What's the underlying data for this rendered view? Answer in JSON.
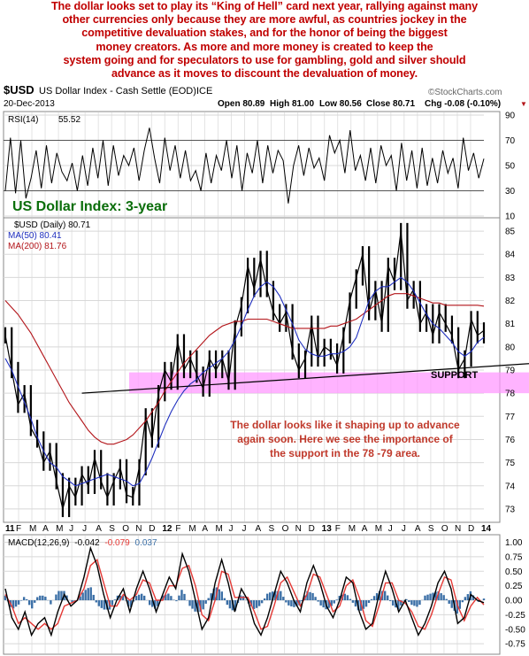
{
  "headline": [
    "The dollar looks set to play its “King of Hell” card next year, rallying against many",
    "other currencies only because they are more awful, as countries jockey in the",
    "competitive devaluation stakes, and for the honor of being the biggest",
    "money creators. As more and more money is created to keep the",
    "system going and for speculators to use for gambling, gold and silver should",
    "advance as it moves to discount the devaluation of money."
  ],
  "chart_header": {
    "symbol": "$USD",
    "name": "US Dollar Index - Cash Settle (EOD)",
    "exchange": "ICE",
    "date": "20-Dec-2013",
    "source": "©StockCharts.com",
    "open": "Open 80.89",
    "high": "High 81.00",
    "low": "Low 80.56",
    "close": "Close 80.71",
    "chg": "Chg -0.08 (-0.10%)",
    "chg_marker": "▼"
  },
  "colors": {
    "headline": "#c00000",
    "price": "#000000",
    "ma50": "#1f2fbf",
    "ma200": "#b3151a",
    "support": "#ff99ff",
    "annotation": "#c0392b",
    "title": "#0b6e0b",
    "macd": "#000000",
    "signal": "#e53935",
    "histogram": "#3b6fa6",
    "panel_bg": "#ffffff",
    "grid": "#d8d8d8"
  },
  "chart_data": [
    {
      "id": "rsi",
      "type": "line",
      "label": "RSI(14)",
      "value": "55.52",
      "ylim": [
        10,
        90
      ],
      "yticks": [
        "90",
        "70",
        "50",
        "30",
        "10"
      ],
      "reference_lines": [
        70,
        30
      ],
      "series": [
        {
          "name": "RSI(14)",
          "values": [
            30,
            72,
            28,
            70,
            24,
            40,
            62,
            32,
            66,
            36,
            60,
            45,
            38,
            52,
            30,
            58,
            34,
            64,
            40,
            70,
            34,
            66,
            42,
            58,
            50,
            64,
            38,
            62,
            80,
            56,
            36,
            72,
            46,
            66,
            40,
            62,
            38,
            46,
            30,
            60,
            36,
            58,
            46,
            70,
            40,
            66,
            30,
            60,
            44,
            70,
            36,
            66,
            44,
            62,
            54,
            20,
            50,
            66,
            42,
            64,
            48,
            56,
            38,
            74,
            60,
            70,
            44,
            78,
            46,
            58,
            38,
            64,
            36,
            66,
            50,
            58,
            30,
            68,
            38,
            62,
            32,
            64,
            34,
            56,
            36,
            62,
            44,
            56,
            32,
            72,
            46,
            60,
            40,
            55.5
          ]
        }
      ]
    },
    {
      "id": "price",
      "type": "line",
      "title": "US Dollar Index: 3-year",
      "legend": [
        {
          "label": "$USD (Daily) 80.71",
          "color": "#000000"
        },
        {
          "label": "MA(50) 80.41",
          "color": "#1f2fbf"
        },
        {
          "label": "MA(200) 81.76",
          "color": "#b3151a"
        }
      ],
      "ylim": [
        72.5,
        85.5
      ],
      "yticks": [
        "85",
        "84",
        "83",
        "82",
        "81",
        "80",
        "79",
        "78",
        "77",
        "76",
        "75",
        "74",
        "73"
      ],
      "x_labels": [
        "11",
        "F",
        "M",
        "A",
        "M",
        "J",
        "J",
        "A",
        "S",
        "O",
        "N",
        "D",
        "12",
        "F",
        "M",
        "A",
        "M",
        "J",
        "J",
        "A",
        "S",
        "O",
        "N",
        "D",
        "13",
        "F",
        "M",
        "A",
        "M",
        "J",
        "J",
        "A",
        "S",
        "O",
        "N",
        "D",
        "14"
      ],
      "series": [
        {
          "name": "$USD (Daily)",
          "values": [
            80.5,
            79.0,
            77.5,
            78.0,
            76.5,
            76.0,
            75.0,
            75.5,
            74.2,
            73.0,
            74.0,
            73.5,
            74.5,
            74.0,
            75.2,
            74.2,
            73.5,
            74.2,
            74.8,
            73.6,
            73.5,
            74.8,
            77.0,
            76.0,
            78.0,
            79.0,
            78.5,
            80.2,
            79.0,
            79.5,
            78.8,
            78.2,
            79.5,
            79.0,
            79.5,
            78.5,
            80.8,
            81.8,
            83.5,
            82.5,
            83.8,
            82.5,
            81.5,
            81.0,
            81.5,
            79.8,
            79.0,
            79.5,
            81.0,
            79.5,
            80.0,
            79.8,
            79.2,
            80.5,
            82.0,
            83.0,
            84.0,
            81.5,
            82.5,
            81.0,
            83.5,
            82.8,
            85.0,
            82.0,
            82.5,
            81.0,
            81.5,
            80.5,
            81.5,
            81.0,
            80.5,
            79.0,
            79.5,
            81.2,
            80.5,
            80.71
          ]
        },
        {
          "name": "MA(50)",
          "values": [
            79.5,
            79.0,
            78.3,
            77.6,
            76.9,
            76.1,
            75.5,
            75.0,
            74.8,
            74.4,
            74.2,
            74.0,
            74.1,
            74.2,
            74.3,
            74.4,
            74.5,
            74.4,
            74.3,
            74.2,
            74.0,
            74.1,
            74.6,
            75.2,
            75.9,
            76.6,
            77.2,
            77.7,
            78.1,
            78.4,
            78.6,
            78.9,
            79.1,
            79.3,
            79.5,
            79.8,
            80.3,
            80.9,
            81.6,
            82.2,
            82.6,
            82.8,
            82.6,
            82.2,
            81.6,
            81.0,
            80.3,
            79.9,
            79.7,
            79.6,
            79.6,
            79.7,
            79.7,
            79.8,
            80.0,
            80.4,
            81.2,
            82.0,
            82.4,
            82.6,
            82.6,
            82.8,
            83.0,
            82.8,
            82.4,
            81.9,
            81.4,
            81.0,
            80.8,
            80.5,
            80.2,
            79.8,
            79.6,
            79.8,
            80.2,
            80.41
          ]
        },
        {
          "name": "MA(200)",
          "values": [
            82.0,
            81.7,
            81.4,
            81.0,
            80.6,
            80.1,
            79.6,
            79.1,
            78.6,
            78.1,
            77.6,
            77.2,
            76.8,
            76.4,
            76.1,
            75.9,
            75.8,
            75.8,
            75.9,
            76.0,
            76.2,
            76.5,
            76.8,
            77.2,
            77.6,
            78.1,
            78.5,
            78.9,
            79.3,
            79.6,
            79.9,
            80.2,
            80.5,
            80.7,
            80.9,
            81.0,
            81.1,
            81.1,
            81.2,
            81.2,
            81.2,
            81.2,
            81.1,
            81.0,
            80.9,
            80.8,
            80.8,
            80.8,
            80.8,
            80.8,
            80.8,
            80.9,
            80.9,
            81.0,
            81.1,
            81.2,
            81.4,
            81.6,
            81.8,
            82.0,
            82.2,
            82.3,
            82.3,
            82.3,
            82.2,
            82.1,
            82.0,
            81.9,
            81.9,
            81.8,
            81.8,
            81.8,
            81.8,
            81.8,
            81.8,
            81.76
          ]
        }
      ],
      "trendline": {
        "start": [
          78.0,
          12
        ],
        "end": [
          79.2,
          73
        ]
      },
      "support_band": {
        "low": 78.0,
        "high": 78.9,
        "label": "SUPPORT"
      },
      "annotation": [
        "The dollar looks like it shaping up to advance",
        "again soon. Here we see the importance of",
        "the support in the 78 -79 area."
      ]
    },
    {
      "id": "macd",
      "type": "line",
      "label": "MACD(12,26,9)",
      "value_macd": "-0.042",
      "value_signal": "-0.079",
      "value_hist": "0.037",
      "ylim": [
        -0.9,
        1.1
      ],
      "yticks": [
        "1.00",
        "0.75",
        "0.50",
        "0.25",
        "0.00",
        "-0.25",
        "-0.50",
        "-0.75"
      ],
      "x_labels": [
        "11",
        "F",
        "M",
        "A",
        "M",
        "J",
        "J",
        "A",
        "S",
        "O",
        "N",
        "D",
        "12",
        "F",
        "M",
        "A",
        "M",
        "J",
        "J",
        "A",
        "S",
        "O",
        "N",
        "D",
        "13",
        "F",
        "M",
        "A",
        "M",
        "J",
        "J",
        "A",
        "S",
        "O",
        "N",
        "D",
        "14"
      ],
      "series": [
        {
          "name": "MACD",
          "values": [
            0.2,
            -0.3,
            -0.5,
            -0.2,
            -0.6,
            -0.4,
            -0.3,
            -0.6,
            -0.2,
            0.1,
            -0.1,
            0.0,
            0.4,
            0.9,
            0.6,
            0.1,
            -0.3,
            0.0,
            0.2,
            -0.2,
            0.2,
            0.5,
            0.2,
            -0.2,
            0.1,
            0.4,
            0.2,
            0.8,
            0.5,
            0.0,
            -0.5,
            -0.3,
            0.3,
            0.7,
            0.3,
            -0.2,
            0.2,
            0.0,
            -0.4,
            -0.6,
            -0.3,
            0.1,
            0.5,
            0.3,
            0.0,
            -0.2,
            0.3,
            0.6,
            0.3,
            -0.1,
            -0.3,
            0.0,
            0.4,
            0.3,
            -0.2,
            -0.5,
            -0.4,
            0.1,
            0.5,
            0.2,
            -0.2,
            0.0,
            -0.3,
            -0.6,
            -0.4,
            -0.1,
            0.3,
            0.5,
            0.2,
            -0.4,
            -0.3,
            0.1,
            0.0,
            -0.042
          ]
        },
        {
          "name": "Signal",
          "values": [
            0.1,
            -0.1,
            -0.4,
            -0.3,
            -0.4,
            -0.5,
            -0.4,
            -0.5,
            -0.4,
            -0.1,
            -0.05,
            0.0,
            0.2,
            0.6,
            0.7,
            0.3,
            -0.1,
            -0.1,
            0.1,
            0.0,
            0.1,
            0.35,
            0.3,
            0.0,
            0.0,
            0.25,
            0.25,
            0.55,
            0.6,
            0.25,
            -0.25,
            -0.35,
            0.0,
            0.5,
            0.45,
            0.05,
            0.05,
            0.05,
            -0.2,
            -0.5,
            -0.45,
            -0.1,
            0.3,
            0.4,
            0.15,
            -0.1,
            0.1,
            0.45,
            0.4,
            0.1,
            -0.2,
            -0.1,
            0.25,
            0.35,
            0.05,
            -0.35,
            -0.45,
            -0.1,
            0.3,
            0.3,
            0.0,
            -0.05,
            -0.2,
            -0.45,
            -0.5,
            -0.25,
            0.1,
            0.4,
            0.35,
            -0.1,
            -0.35,
            -0.1,
            0.05,
            -0.079
          ]
        }
      ]
    }
  ]
}
